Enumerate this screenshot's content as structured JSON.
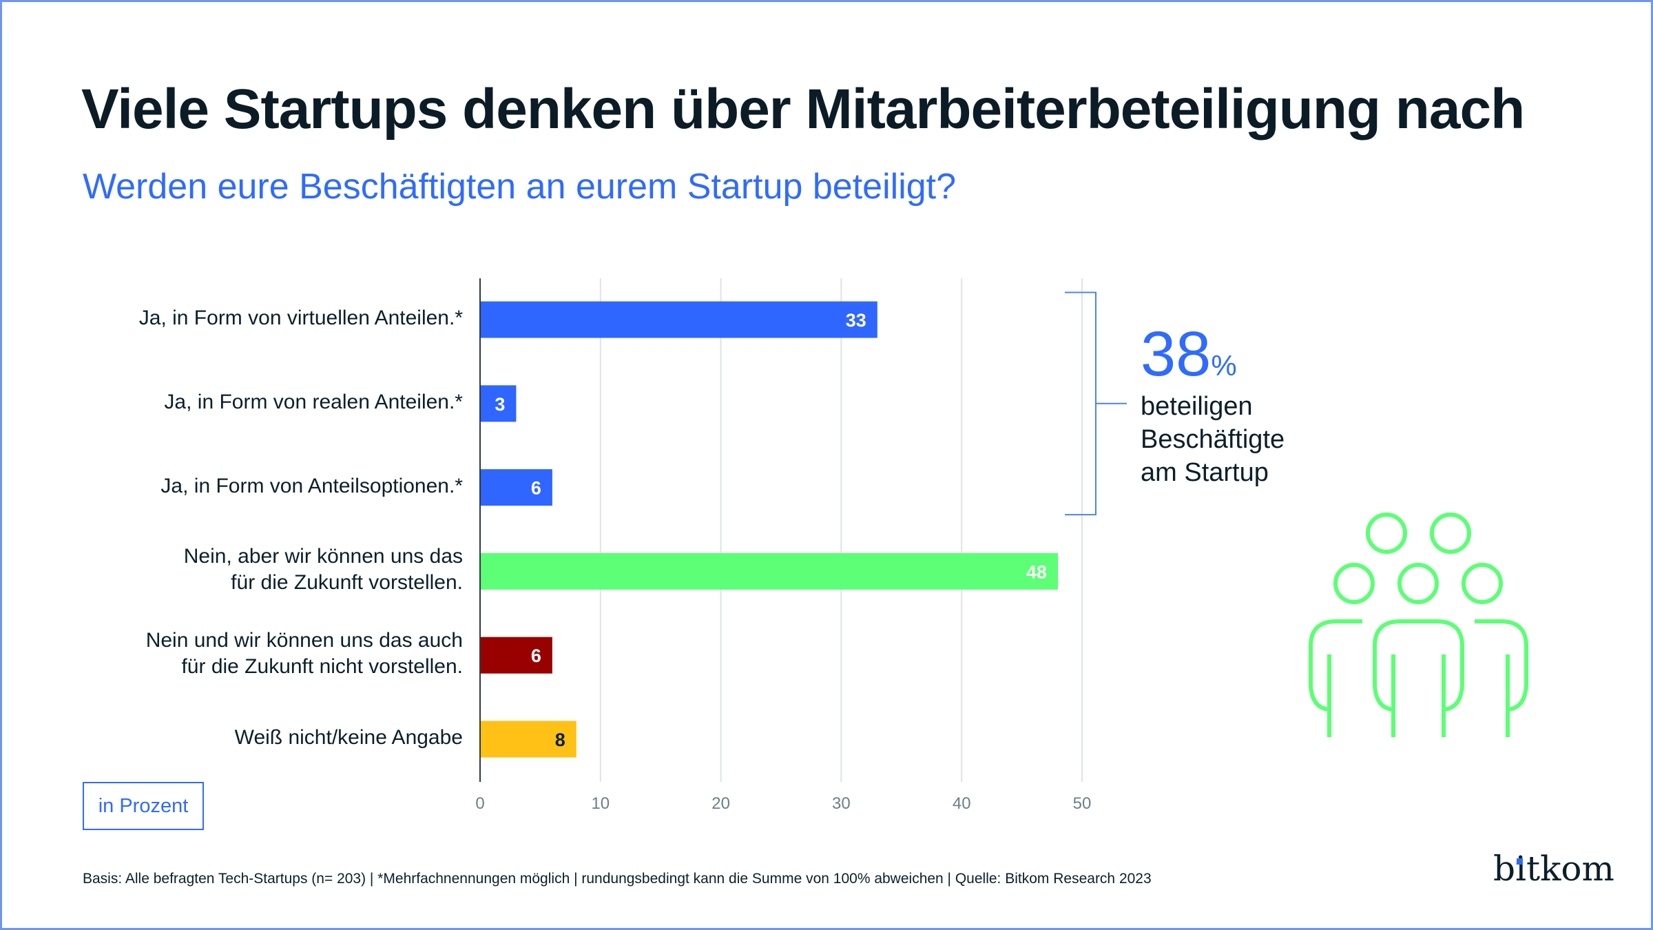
{
  "header": {
    "title": "Viele Startups denken über Mitarbeiterbeteiligung nach",
    "subtitle": "Werden eure Beschäftigten an eurem Startup beteiligt?"
  },
  "chart_data": {
    "type": "bar",
    "orientation": "horizontal",
    "title": "Viele Startups denken über Mitarbeiterbeteiligung nach",
    "subtitle": "Werden eure Beschäftigten an eurem Startup beteiligt?",
    "xlabel": "in Prozent",
    "ylabel": "",
    "xlim": [
      0,
      50
    ],
    "xticks": [
      0,
      10,
      20,
      30,
      40,
      50
    ],
    "grid": true,
    "categories": [
      [
        "Ja, in Form von virtuellen Anteilen.*"
      ],
      [
        "Ja, in Form von realen Anteilen.*"
      ],
      [
        "Ja, in Form von Anteilsoptionen.*"
      ],
      [
        "Nein, aber wir können uns das",
        "für die Zukunft vorstellen."
      ],
      [
        "Nein und wir können uns das auch",
        "für die Zukunft nicht vorstellen."
      ],
      [
        "Weiß nicht/keine Angabe"
      ]
    ],
    "values": [
      33,
      3,
      6,
      48,
      6,
      8
    ],
    "colors": [
      "#2f66ff",
      "#2f66ff",
      "#2f66ff",
      "#5cff75",
      "#990000",
      "#ffc116"
    ],
    "value_label_colors": [
      "#ffffff",
      "#ffffff",
      "#ffffff",
      "#ffffff",
      "#ffffff",
      "#0b1f2a"
    ],
    "annotation": {
      "bracket_covers": [
        0,
        1,
        2
      ],
      "value": "38",
      "unit": "%",
      "text_lines": [
        "beteiligen",
        "Beschäftigte",
        "am Startup"
      ]
    }
  },
  "unit_label": "in Prozent",
  "icons": {
    "people": "people-group-icon"
  },
  "footer": {
    "text": "Basis: Alle befragten Tech-Startups (n= 203) | *Mehrfachnennungen möglich | rundungsbedingt kann die Summe von 100% abweichen | Quelle: Bitkom Research 2023"
  },
  "brand": {
    "logo_text": "bitkom",
    "accent": "#2f6bff",
    "green": "#5cff75"
  }
}
